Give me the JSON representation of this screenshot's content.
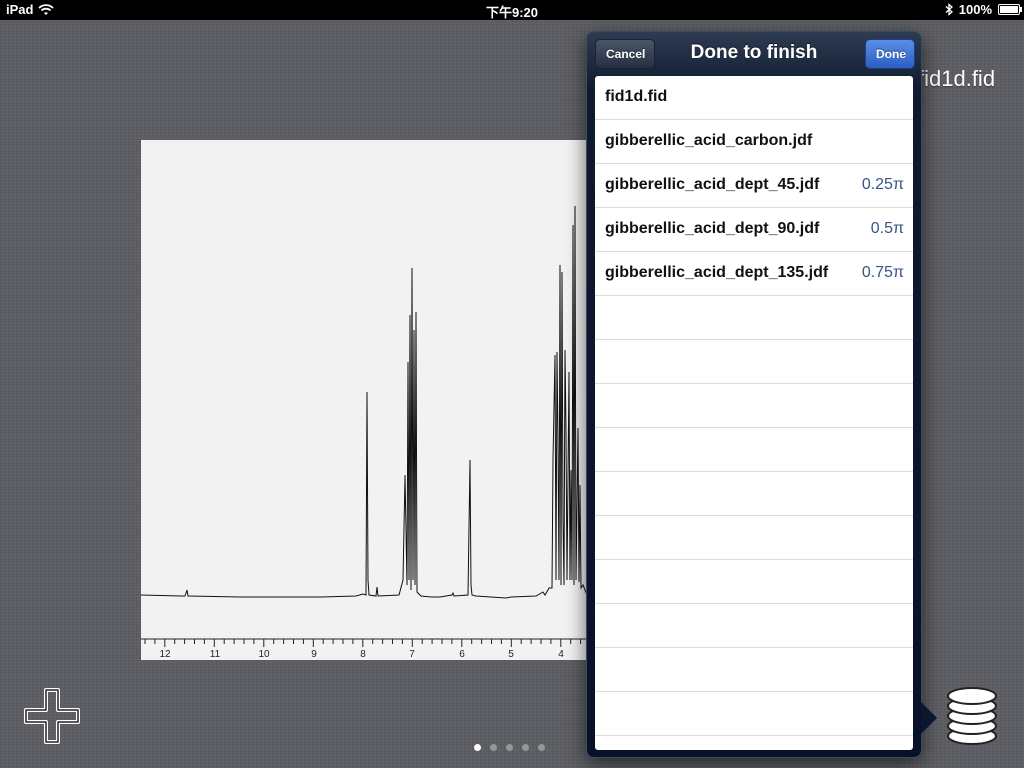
{
  "status_bar": {
    "device": "iPad",
    "time": "下午9:20",
    "battery": "100%",
    "battery_level": 1.0
  },
  "document_title": "fid1d.fid",
  "spectrum": {
    "x_ticks": [
      "12",
      "11",
      "10",
      "9",
      "8",
      "7",
      "6",
      "5",
      "4"
    ]
  },
  "popover": {
    "title": "Done to finish",
    "cancel_label": "Cancel",
    "done_label": "Done",
    "rows": [
      {
        "name": "fid1d.fid",
        "value": ""
      },
      {
        "name": "gibberellic_acid_carbon.jdf",
        "value": ""
      },
      {
        "name": "gibberellic_acid_dept_45.jdf",
        "value": "0.25π"
      },
      {
        "name": "gibberellic_acid_dept_90.jdf",
        "value": "0.5π"
      },
      {
        "name": "gibberellic_acid_dept_135.jdf",
        "value": "0.75π"
      }
    ]
  },
  "page_control": {
    "count": 5,
    "active": 0
  },
  "icons": {
    "add": "plus-icon",
    "stack": "stack-icon",
    "wifi": "wifi-icon",
    "bluetooth": "bluetooth-icon",
    "battery": "battery-icon"
  }
}
